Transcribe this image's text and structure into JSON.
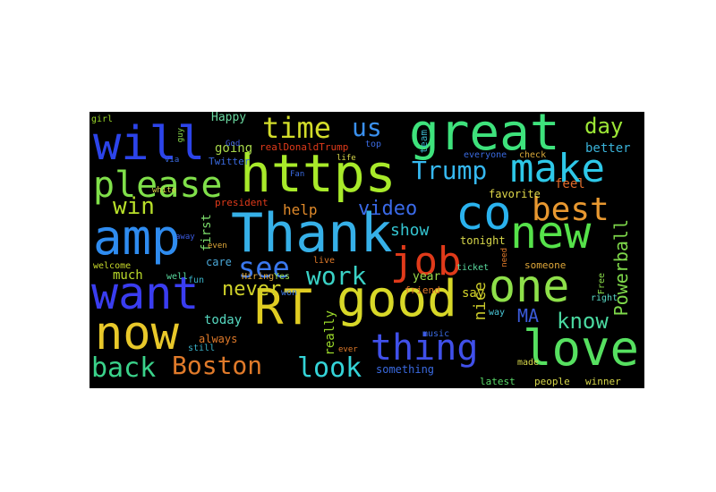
{
  "title": "Word cloud",
  "colors": {
    "background": "#000000",
    "page": "#ffffff"
  },
  "words": [
    {
      "text": "Thank",
      "color": "#36b0e8",
      "weight": 1.0
    },
    {
      "text": "https",
      "color": "#a8ea2a",
      "weight": 0.95
    },
    {
      "text": "great",
      "color": "#3ee27c",
      "weight": 0.9
    },
    {
      "text": "amp",
      "color": "#2f8cf0",
      "weight": 0.86
    },
    {
      "text": "want",
      "color": "#3a3df0",
      "weight": 0.82
    },
    {
      "text": "good",
      "color": "#d8d828",
      "weight": 0.82
    },
    {
      "text": "now",
      "color": "#e8c82a",
      "weight": 0.78
    },
    {
      "text": "will",
      "color": "#2c44ea",
      "weight": 0.78
    },
    {
      "text": "new",
      "color": "#56e24a",
      "weight": 0.74
    },
    {
      "text": "RT",
      "color": "#e0cc22",
      "weight": 0.72
    },
    {
      "text": "love",
      "color": "#56e060",
      "weight": 0.7
    },
    {
      "text": "one",
      "color": "#8ee04a",
      "weight": 0.68
    },
    {
      "text": "make",
      "color": "#2ec8e8",
      "weight": 0.66
    },
    {
      "text": "co",
      "color": "#2ab2ee",
      "weight": 0.66
    },
    {
      "text": "please",
      "color": "#80e04a",
      "weight": 0.6
    },
    {
      "text": "job",
      "color": "#e03a1a",
      "weight": 0.58
    },
    {
      "text": "thing",
      "color": "#4050ea",
      "weight": 0.56
    },
    {
      "text": "best",
      "color": "#e89830",
      "weight": 0.56
    },
    {
      "text": "time",
      "color": "#d2dc2a",
      "weight": 0.52
    },
    {
      "text": "see",
      "color": "#3a78ee",
      "weight": 0.52
    },
    {
      "text": "back",
      "color": "#3ad28a",
      "weight": 0.48
    },
    {
      "text": "Boston",
      "color": "#e07a2a",
      "weight": 0.48
    },
    {
      "text": "look",
      "color": "#34d4d8",
      "weight": 0.48
    },
    {
      "text": "Trump",
      "color": "#36b8f0",
      "weight": 0.46
    },
    {
      "text": "win",
      "color": "#b8e02a",
      "weight": 0.44
    },
    {
      "text": "us",
      "color": "#3a90ee",
      "weight": 0.44
    },
    {
      "text": "work",
      "color": "#3ad2c6",
      "weight": 0.44
    },
    {
      "text": "day",
      "color": "#9ce636",
      "weight": 0.42
    },
    {
      "text": "know",
      "color": "#4ad8a0",
      "weight": 0.4
    },
    {
      "text": "video",
      "color": "#3a6ae8",
      "weight": 0.36
    },
    {
      "text": "never",
      "color": "#d0d22a",
      "weight": 0.34
    },
    {
      "text": "Powerball",
      "color": "#7ed84a",
      "weight": 0.34
    },
    {
      "text": "show",
      "color": "#34c4d0",
      "weight": 0.3
    },
    {
      "text": "MA",
      "color": "#3a5ad8",
      "weight": 0.3
    },
    {
      "text": "help",
      "color": "#e08a2a",
      "weight": 0.28
    },
    {
      "text": "nice",
      "color": "#c8c82a",
      "weight": 0.28
    },
    {
      "text": "better",
      "color": "#3ab2d8",
      "weight": 0.24
    },
    {
      "text": "first",
      "color": "#7ada6a",
      "weight": 0.24
    },
    {
      "text": "much",
      "color": "#bada2a",
      "weight": 0.22
    },
    {
      "text": "today",
      "color": "#56d8c0",
      "weight": 0.22
    },
    {
      "text": "really",
      "color": "#9ad82a",
      "weight": 0.22
    },
    {
      "text": "going",
      "color": "#a8d84a",
      "weight": 0.22
    },
    {
      "text": "Happy",
      "color": "#6ad8a0",
      "weight": 0.2
    },
    {
      "text": "year",
      "color": "#9ad84a",
      "weight": 0.2
    },
    {
      "text": "say",
      "color": "#d4d42a",
      "weight": 0.2
    },
    {
      "text": "something",
      "color": "#3a6ae0",
      "weight": 0.2
    },
    {
      "text": "feel",
      "color": "#e06a2a",
      "weight": 0.2
    },
    {
      "text": "team",
      "color": "#3ab2c8",
      "weight": 0.18
    },
    {
      "text": "favorite",
      "color": "#e0d84a",
      "weight": 0.18
    },
    {
      "text": "tonight",
      "color": "#d8d84a",
      "weight": 0.18
    },
    {
      "text": "care",
      "color": "#4aa8d8",
      "weight": 0.18
    },
    {
      "text": "always",
      "color": "#e07a2a",
      "weight": 0.18
    },
    {
      "text": "realDonaldTrump",
      "color": "#e03a1a",
      "weight": 0.18
    },
    {
      "text": "Twitter",
      "color": "#3a6ae0",
      "weight": 0.18
    },
    {
      "text": "president",
      "color": "#e03a1a",
      "weight": 0.18
    },
    {
      "text": "someone",
      "color": "#e0a83a",
      "weight": 0.17
    },
    {
      "text": "latest",
      "color": "#5adc6a",
      "weight": 0.16
    },
    {
      "text": "people",
      "color": "#d8d84a",
      "weight": 0.16
    },
    {
      "text": "winner",
      "color": "#d8d84a",
      "weight": 0.16
    },
    {
      "text": "friend",
      "color": "#e07a2a",
      "weight": 0.16
    },
    {
      "text": "girl",
      "color": "#9ad82a",
      "weight": 0.16
    },
    {
      "text": "still",
      "color": "#3ab2c8",
      "weight": 0.16
    },
    {
      "text": "well",
      "color": "#5adca0",
      "weight": 0.16
    },
    {
      "text": "welcome",
      "color": "#c8d82a",
      "weight": 0.16
    },
    {
      "text": "right",
      "color": "#5adcc8",
      "weight": 0.16
    },
    {
      "text": "check",
      "color": "#d8a83a",
      "weight": 0.16
    },
    {
      "text": "everyone",
      "color": "#3a6ae0",
      "weight": 0.16
    },
    {
      "text": "top",
      "color": "#3a6ae0",
      "weight": 0.16
    },
    {
      "text": "made",
      "color": "#d8d84a",
      "weight": 0.15
    },
    {
      "text": "way",
      "color": "#4ac8d8",
      "weight": 0.15
    },
    {
      "text": "music",
      "color": "#3a6ae0",
      "weight": 0.15
    },
    {
      "text": "Hiring",
      "color": "#e0a83a",
      "weight": 0.15
    },
    {
      "text": "Yes",
      "color": "#9adc4a",
      "weight": 0.15
    },
    {
      "text": "won",
      "color": "#3a78e0",
      "weight": 0.15
    },
    {
      "text": "fun",
      "color": "#3ab2c8",
      "weight": 0.15
    },
    {
      "text": "live",
      "color": "#e07a2a",
      "weight": 0.15
    },
    {
      "text": "Free",
      "color": "#8adc4a",
      "weight": 0.15
    },
    {
      "text": "ticket",
      "color": "#5adca0",
      "weight": 0.15
    },
    {
      "text": "via",
      "color": "#3a6ae0",
      "weight": 0.14
    },
    {
      "text": "white",
      "color": "#e0d84a",
      "weight": 0.14
    },
    {
      "text": "God",
      "color": "#3a5ae0",
      "weight": 0.14
    },
    {
      "text": "guy",
      "color": "#8adc4a",
      "weight": 0.14
    },
    {
      "text": "even",
      "color": "#e0a83a",
      "weight": 0.14
    },
    {
      "text": "away",
      "color": "#3a5ae0",
      "weight": 0.14
    },
    {
      "text": "life",
      "color": "#d8d84a",
      "weight": 0.13
    },
    {
      "text": "ever",
      "color": "#e07a2a",
      "weight": 0.13
    },
    {
      "text": "need",
      "color": "#e07a2a",
      "weight": 0.13
    },
    {
      "text": "Fan",
      "color": "#3a6ae0",
      "weight": 0.13
    }
  ]
}
